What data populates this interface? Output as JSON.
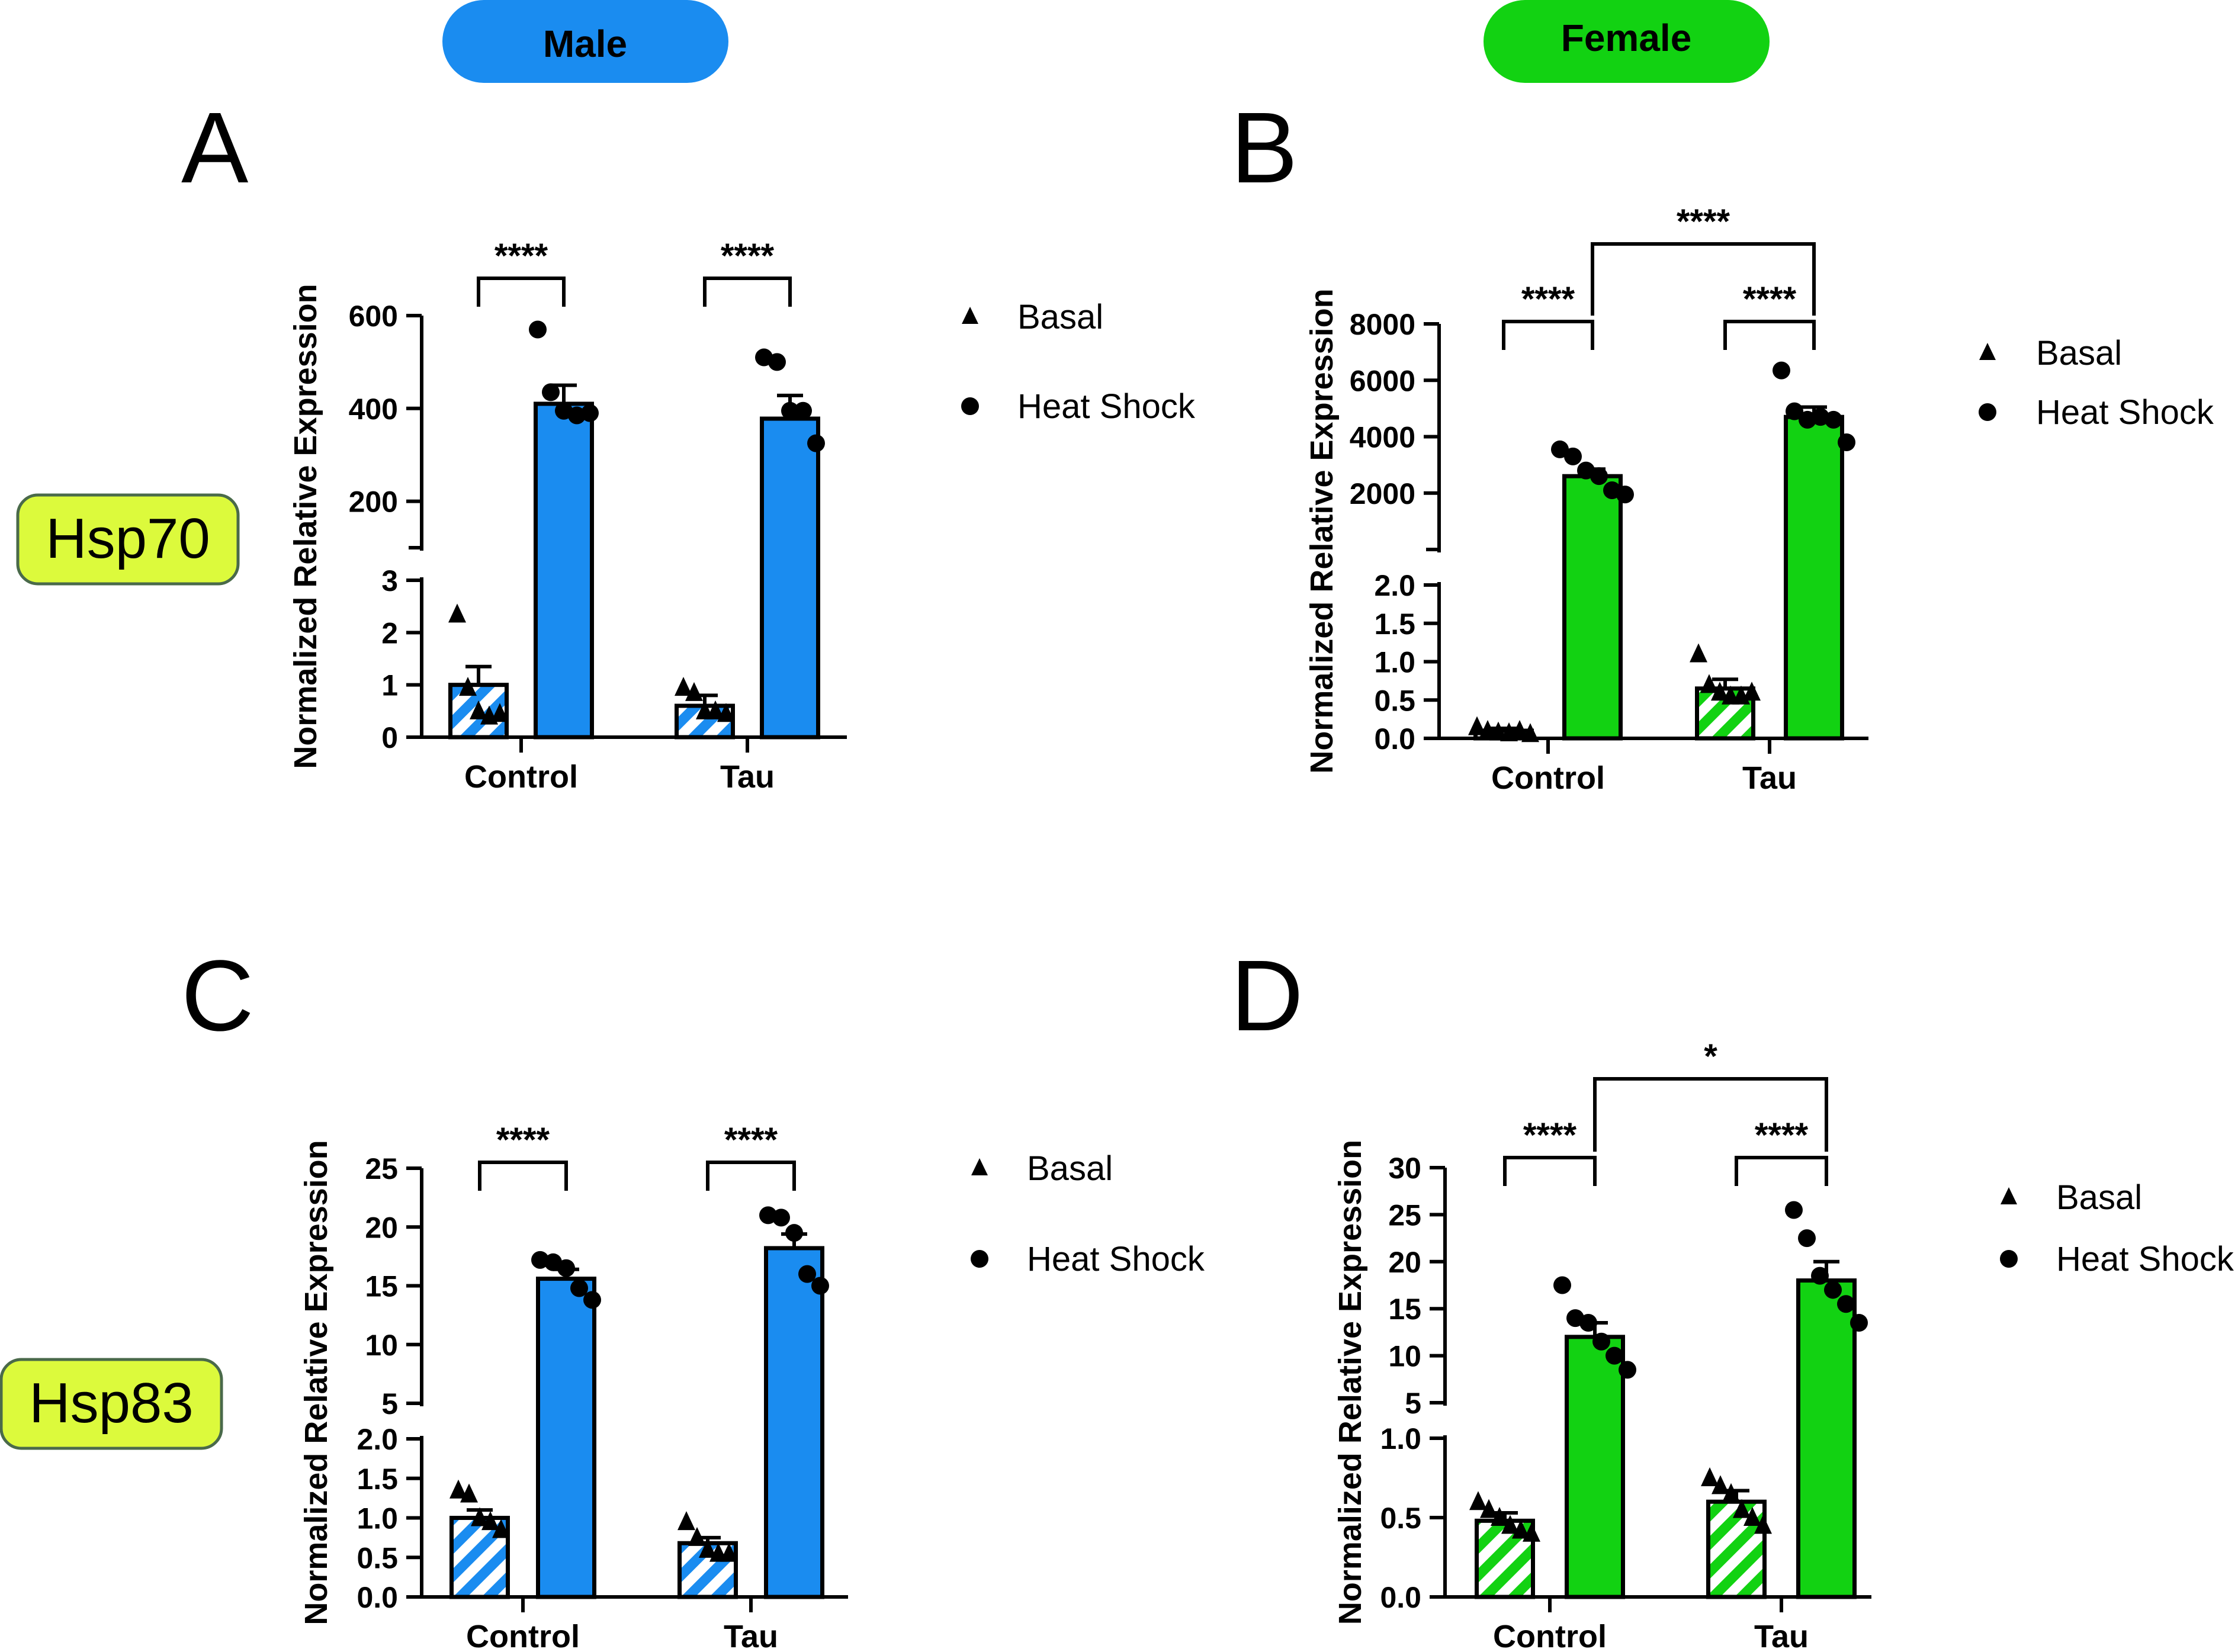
{
  "headers": {
    "male": "Male",
    "female": "Female",
    "male_color": "#1a8cf0",
    "female_color": "#12d212"
  },
  "genes": {
    "hsp70": "Hsp70",
    "hsp83": "Hsp83",
    "gene_color": "#dcfa3c"
  },
  "colors": {
    "male_bar": "#1a8cf0",
    "female_bar": "#12d212",
    "ink": "#000000"
  },
  "chart_data": [
    {
      "panel": "A",
      "type": "bar",
      "sex": "male",
      "ylabel": "Normalized Relative Expression",
      "categories": [
        "Control",
        "Tau"
      ],
      "series": [
        {
          "name": "Basal",
          "marker": "triangle",
          "values": [
            1.0,
            0.6
          ],
          "sem": [
            0.35,
            0.2
          ],
          "points": [
            [
              2.35,
              0.95,
              0.5,
              0.4,
              0.45
            ],
            [
              0.95,
              0.85,
              0.5,
              0.5,
              0.45
            ]
          ]
        },
        {
          "name": "Heat Shock",
          "marker": "circle",
          "values": [
            410,
            378
          ],
          "sem": [
            40,
            50
          ],
          "points": [
            [
              570,
              435,
              395,
              385,
              390
            ],
            [
              510,
              500,
              395,
              395,
              325
            ]
          ]
        }
      ],
      "axis": {
        "lower": {
          "range": [
            0,
            3
          ],
          "ticks": [
            "0",
            "1",
            "2",
            "3"
          ]
        },
        "upper": {
          "range": [
            100,
            600
          ],
          "ticks": [
            "200",
            "400",
            "600"
          ]
        }
      },
      "significance": [
        {
          "label": "****",
          "from": [
            0,
            0
          ],
          "to": [
            0,
            1
          ]
        },
        {
          "label": "****",
          "from": [
            1,
            0
          ],
          "to": [
            1,
            1
          ]
        }
      ],
      "legend": [
        "Basal",
        "Heat Shock"
      ]
    },
    {
      "panel": "B",
      "type": "bar",
      "sex": "female",
      "ylabel": "Normalized Relative Expression",
      "categories": [
        "Control",
        "Tau"
      ],
      "series": [
        {
          "name": "Basal",
          "marker": "triangle",
          "values": [
            0.1,
            0.65
          ],
          "sem": [
            0.03,
            0.12
          ],
          "points": [
            [
              0.15,
              0.1,
              0.08,
              0.07,
              0.1,
              0.06
            ],
            [
              1.1,
              0.7,
              0.6,
              0.55,
              0.55,
              0.6
            ]
          ]
        },
        {
          "name": "Heat Shock",
          "marker": "circle",
          "values": [
            2600,
            4700
          ],
          "sem": [
            250,
            350
          ],
          "points": [
            [
              3550,
              3300,
              2800,
              2600,
              2100,
              1950
            ],
            [
              6350,
              4900,
              4600,
              4700,
              4600,
              3800
            ]
          ]
        }
      ],
      "axis": {
        "lower": {
          "range": [
            0,
            2.0
          ],
          "ticks": [
            "0.0",
            "0.5",
            "1.0",
            "1.5",
            "2.0"
          ]
        },
        "upper": {
          "range": [
            0,
            8000
          ],
          "ticks": [
            "2000",
            "4000",
            "6000",
            "8000"
          ]
        }
      },
      "significance": [
        {
          "label": "****",
          "from": [
            0,
            0
          ],
          "to": [
            0,
            1
          ]
        },
        {
          "label": "****",
          "from": [
            1,
            0
          ],
          "to": [
            1,
            1
          ]
        },
        {
          "label": "****",
          "from": [
            0,
            1
          ],
          "to": [
            1,
            1
          ]
        }
      ],
      "legend": [
        "Basal",
        "Heat Shock"
      ]
    },
    {
      "panel": "C",
      "type": "bar",
      "sex": "male",
      "ylabel": "Normalized Relative Expression",
      "categories": [
        "Control",
        "Tau"
      ],
      "series": [
        {
          "name": "Basal",
          "marker": "triangle",
          "values": [
            1.0,
            0.68
          ],
          "sem": [
            0.1,
            0.07
          ],
          "points": [
            [
              1.35,
              1.3,
              1.0,
              0.95,
              0.85
            ],
            [
              0.95,
              0.75,
              0.6,
              0.55,
              0.55
            ]
          ]
        },
        {
          "name": "Heat Shock",
          "marker": "circle",
          "values": [
            15.6,
            18.2
          ],
          "sem": [
            0.8,
            1.2
          ],
          "points": [
            [
              17.2,
              17.0,
              16.5,
              14.8,
              13.8
            ],
            [
              21.0,
              20.8,
              19.5,
              16.0,
              15.0
            ]
          ]
        }
      ],
      "axis": {
        "lower": {
          "range": [
            0,
            2.0
          ],
          "ticks": [
            "0.0",
            "0.5",
            "1.0",
            "1.5",
            "2.0"
          ]
        },
        "upper": {
          "range": [
            5,
            25
          ],
          "ticks": [
            "5",
            "10",
            "15",
            "20",
            "25"
          ]
        }
      },
      "significance": [
        {
          "label": "****",
          "from": [
            0,
            0
          ],
          "to": [
            0,
            1
          ]
        },
        {
          "label": "****",
          "from": [
            1,
            0
          ],
          "to": [
            1,
            1
          ]
        }
      ],
      "legend": [
        "Basal",
        "Heat Shock"
      ]
    },
    {
      "panel": "D",
      "type": "bar",
      "sex": "female",
      "ylabel": "Normalized Relative Expression",
      "categories": [
        "Control",
        "Tau"
      ],
      "series": [
        {
          "name": "Basal",
          "marker": "triangle",
          "values": [
            0.48,
            0.6
          ],
          "sem": [
            0.05,
            0.07
          ],
          "points": [
            [
              0.6,
              0.55,
              0.5,
              0.45,
              0.42,
              0.4
            ],
            [
              0.75,
              0.7,
              0.65,
              0.55,
              0.5,
              0.45
            ]
          ]
        },
        {
          "name": "Heat Shock",
          "marker": "circle",
          "values": [
            12.0,
            18.0
          ],
          "sem": [
            1.5,
            2.0
          ],
          "points": [
            [
              17.5,
              14.0,
              13.5,
              11.5,
              10.0,
              8.5
            ],
            [
              25.5,
              22.5,
              18.5,
              17.0,
              15.5,
              13.5
            ]
          ]
        }
      ],
      "axis": {
        "lower": {
          "range": [
            0,
            1.0
          ],
          "ticks": [
            "0.0",
            "0.5",
            "1.0"
          ]
        },
        "upper": {
          "range": [
            5,
            30
          ],
          "ticks": [
            "5",
            "10",
            "15",
            "20",
            "25",
            "30"
          ]
        }
      },
      "significance": [
        {
          "label": "****",
          "from": [
            0,
            0
          ],
          "to": [
            0,
            1
          ]
        },
        {
          "label": "****",
          "from": [
            1,
            0
          ],
          "to": [
            1,
            1
          ]
        },
        {
          "label": "*",
          "from": [
            0,
            1
          ],
          "to": [
            1,
            1
          ]
        }
      ],
      "legend": [
        "Basal",
        "Heat Shock"
      ]
    }
  ]
}
